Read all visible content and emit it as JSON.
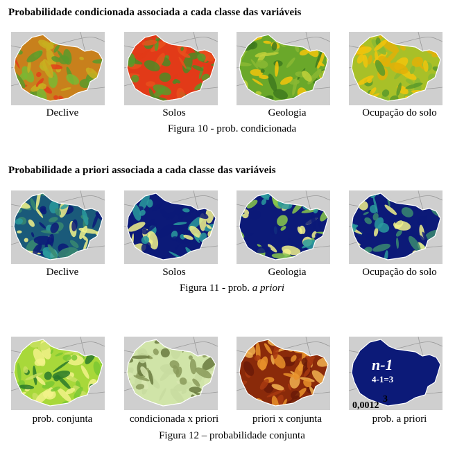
{
  "section1": {
    "heading": "Probabilidade condicionada associada a cada classe das variáveis",
    "labels": [
      "Declive",
      "Solos",
      "Geologia",
      "Ocupação do solo"
    ],
    "caption": "Figura 10 - prob. condicionada"
  },
  "section2": {
    "heading": "Probabilidade a priori associada a cada classe das variáveis",
    "labels": [
      "Declive",
      "Solos",
      "Geologia",
      "Ocupação do solo"
    ],
    "caption_prefix": "Figura 11 - prob. ",
    "caption_italic": "a priori"
  },
  "section3": {
    "labels": [
      "prob. conjunta",
      "condicionada x priori",
      "priori x conjunta",
      "prob. a priori"
    ],
    "caption": "Figura 12 – probabilidade conjunta",
    "overlay": {
      "formula": "n-1",
      "calc": "4-1=3",
      "base": "0,0012",
      "exponent": "3"
    }
  },
  "colors": {
    "map_background": "#cfcfcf",
    "orange_red": "#e2401a",
    "green": "#5a9a2a",
    "yellow": "#f2c40c",
    "navy": "#0c1a78",
    "teal": "#2a9a9c",
    "pale_yellow": "#f2f28a",
    "brown": "#8a2a0a"
  }
}
